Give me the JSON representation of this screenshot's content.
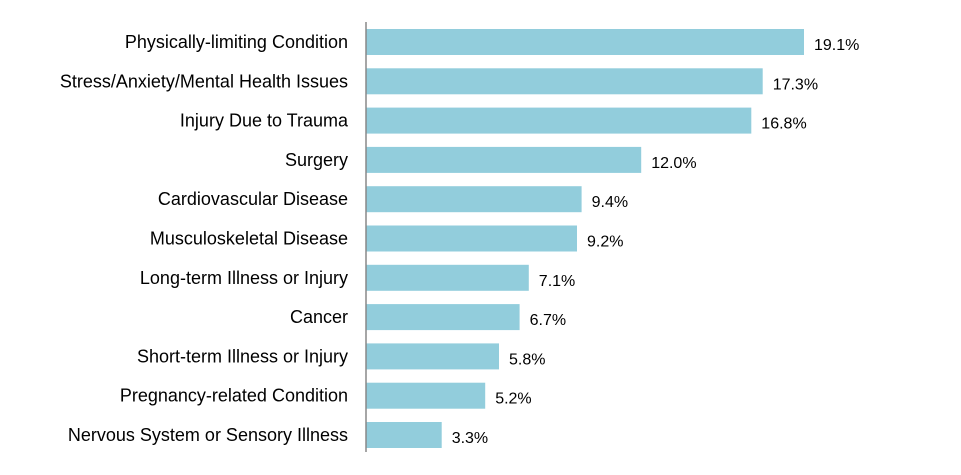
{
  "chart_data": {
    "type": "bar",
    "orientation": "horizontal",
    "categories": [
      "Physically-limiting Condition",
      "Stress/Anxiety/Mental Health Issues",
      "Injury Due to Trauma",
      "Surgery",
      "Cardiovascular Disease",
      "Musculoskeletal Disease",
      "Long-term Illness or Injury",
      "Cancer",
      "Short-term Illness or Injury",
      "Pregnancy-related Condition",
      "Nervous System or Sensory Illness"
    ],
    "values": [
      19.1,
      17.3,
      16.8,
      12.0,
      9.4,
      9.2,
      7.1,
      6.7,
      5.8,
      5.2,
      3.3
    ],
    "value_labels": [
      "19.1%",
      "17.3%",
      "16.8%",
      "12.0%",
      "9.4%",
      "9.2%",
      "7.1%",
      "6.7%",
      "5.8%",
      "5.2%",
      "3.3%"
    ],
    "unit": "%",
    "xlim": [
      0,
      25
    ],
    "grid": false,
    "legend": "none",
    "bar_color": "#92cddc",
    "axis_color": "#888888"
  }
}
